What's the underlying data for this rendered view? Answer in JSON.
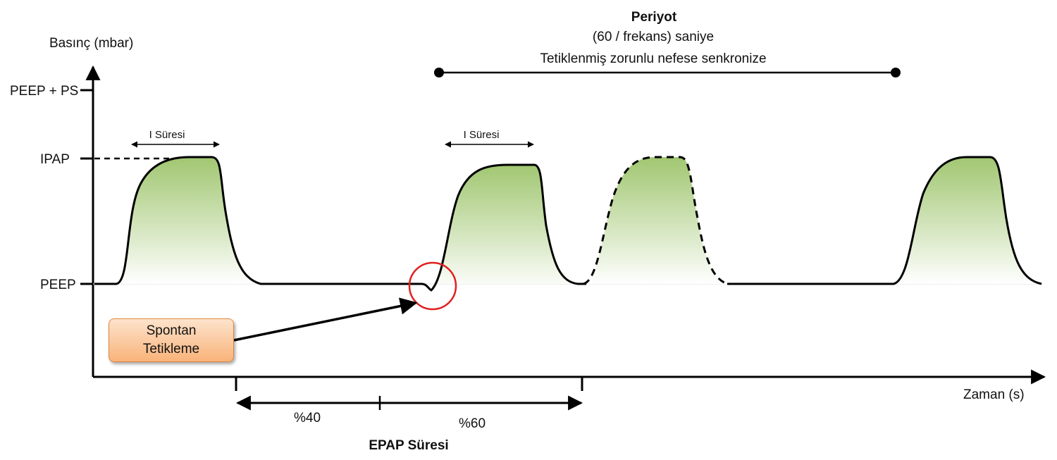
{
  "y_axis": {
    "title": "Basınç (mbar)",
    "levels": [
      "PEEP + PS",
      "IPAP",
      "PEEP"
    ]
  },
  "x_axis": {
    "title": "Zaman (s)"
  },
  "period": {
    "title": "Periyot",
    "line1": "(60 / frekans) saniye",
    "line2": "Tetiklenmiş zorunlu nefese senkronize"
  },
  "i_time_label_1": "I Süresi",
  "i_time_label_2": "I Süresi",
  "trigger": {
    "line1": "Spontan",
    "line2": "Tetikleme"
  },
  "epap": {
    "part1": "%40",
    "part2": "%60",
    "title": "EPAP Süresi"
  },
  "colors": {
    "curve": "#000000",
    "fill_top": "#9cc46a",
    "trigger_circle": "#e02020",
    "trigger_box_fill": "#f9b37a",
    "trigger_box_border": "#e0873f"
  }
}
